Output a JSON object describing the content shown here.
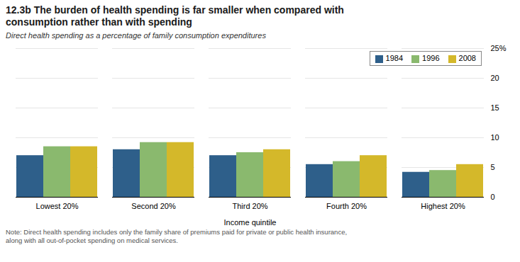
{
  "chart_data": {
    "type": "bar",
    "title": "12.3b The burden of health spending is far smaller when compared with\nconsumption rather than with spending",
    "subtitle": "Direct health spending as a percentage of family consumption expenditures",
    "xlabel": "Income quintile",
    "note": "Note: Direct health spending includes only the family share of premiums paid for private or public health insurance,\nalong with all out-of-pocket spending on medical services.",
    "categories": [
      "Lowest 20%",
      "Second 20%",
      "Third 20%",
      "Fourth 20%",
      "Highest 20%"
    ],
    "series": [
      {
        "name": "1984",
        "color": "#2e5f8a",
        "values": [
          7.0,
          8.0,
          7.0,
          5.5,
          4.2
        ]
      },
      {
        "name": "1996",
        "color": "#8ab96e",
        "values": [
          8.5,
          9.2,
          7.5,
          6.0,
          4.5
        ]
      },
      {
        "name": "2008",
        "color": "#d4b82a",
        "values": [
          8.5,
          9.2,
          8.0,
          7.0,
          5.5
        ]
      }
    ],
    "ylim": [
      0,
      25
    ],
    "yticks": [
      0,
      5,
      10,
      15,
      20,
      {
        "value": 25,
        "label": "25%"
      }
    ],
    "grid": true,
    "legend": "upper right"
  }
}
